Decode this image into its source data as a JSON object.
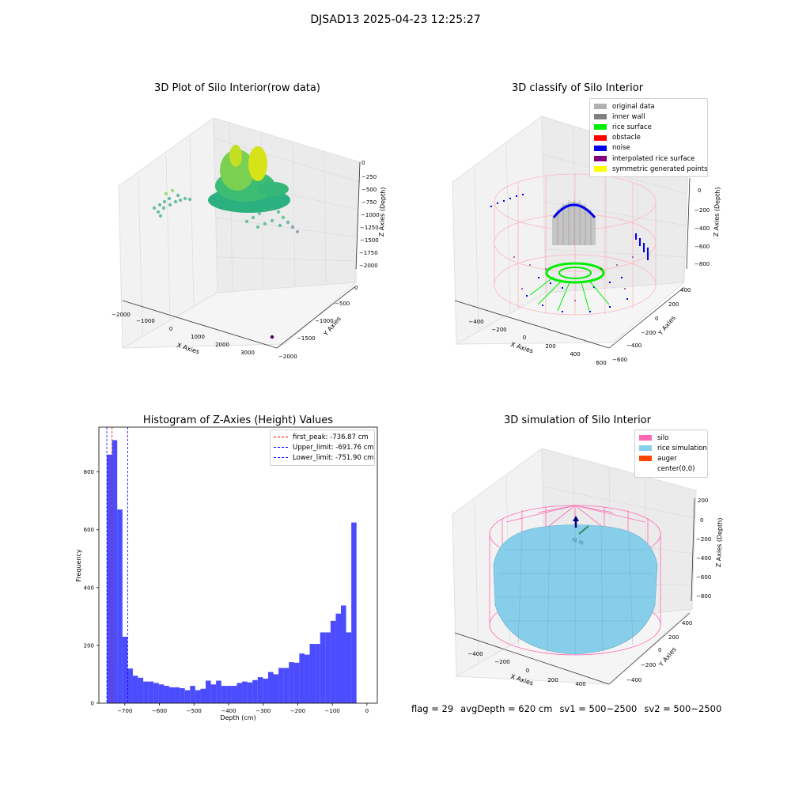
{
  "suptitle": "DJSAD13 2025-04-23 12:25:27",
  "footer": {
    "flag": "flag = 29",
    "avg_depth": "avgDepth = 620 cm",
    "sv1": "sv1 = 500~2500",
    "sv2": "sv2 = 500~2500"
  },
  "raw_plot": {
    "title": "3D Plot of Silo Interior(row data)",
    "x_label": "X Axies",
    "y_label": "Y Axies",
    "z_label": "Z Axies (Depth)",
    "x_ticks": [
      "−2000",
      "−1000",
      "0",
      "1000",
      "2000",
      "3000"
    ],
    "y_ticks": [
      "0",
      "−500",
      "−1000",
      "−1500",
      "−2000"
    ],
    "z_ticks": [
      "0",
      "−250",
      "−500",
      "−750",
      "−1000",
      "−1250",
      "−1500",
      "−1750",
      "−2000"
    ]
  },
  "classify_plot": {
    "title": "3D classify of Silo Interior",
    "x_label": "X Axies",
    "y_label": "Y Axies",
    "z_label": "Z Axies (Depth)",
    "x_ticks": [
      "−400",
      "−200",
      "0",
      "200",
      "400",
      "600"
    ],
    "y_ticks": [
      "400",
      "200",
      "0",
      "−200",
      "−400",
      "−600"
    ],
    "z_ticks": [
      "0",
      "−200",
      "−400",
      "−600",
      "−800"
    ],
    "legend": [
      {
        "label": "original data",
        "color": "#b0b0b0"
      },
      {
        "label": "inner wall",
        "color": "#808080"
      },
      {
        "label": "rice surface",
        "color": "#00ee00"
      },
      {
        "label": "obstacle",
        "color": "#ff0000"
      },
      {
        "label": "noise",
        "color": "#0000ee"
      },
      {
        "label": "interpolated rice surface",
        "color": "#800080"
      },
      {
        "label": "symmetric generated points",
        "color": "#ffff00"
      }
    ]
  },
  "sim_plot": {
    "title": "3D simulation of Silo Interior",
    "x_label": "X Axies",
    "y_label": "Y Axies",
    "z_label": "Z Axies (Depth)",
    "x_ticks": [
      "−400",
      "−200",
      "0",
      "200",
      "400"
    ],
    "y_ticks": [
      "400",
      "200",
      "0",
      "−200",
      "−400"
    ],
    "z_ticks": [
      "200",
      "0",
      "−200",
      "−400",
      "−600",
      "−800"
    ],
    "center_label": "(0, 0)",
    "legend": [
      {
        "label": "silo",
        "color": "#ff69b4"
      },
      {
        "label": "rice simulation",
        "color": "#87ceeb"
      },
      {
        "label": "auger",
        "color": "#ff4500"
      },
      {
        "label": "center(0,0)",
        "color": "#ffffff"
      }
    ]
  },
  "chart_data": {
    "type": "bar",
    "title": "Histogram of Z-Axies (Height) Values",
    "xlabel": "Depth (cm)",
    "ylabel": "Frequency",
    "xlim": [
      -775,
      30
    ],
    "ylim": [
      0,
      955
    ],
    "x_ticks": [
      -700,
      -600,
      -500,
      -400,
      -300,
      -200,
      -100,
      0
    ],
    "x_tick_labels": [
      "−700",
      "−600",
      "−500",
      "−400",
      "−300",
      "−200",
      "−100",
      "0"
    ],
    "y_ticks": [
      0,
      200,
      400,
      600,
      800
    ],
    "y_tick_labels": [
      "0",
      "200",
      "400",
      "600",
      "800"
    ],
    "bar_color": "#0000ff",
    "bins_start": -752,
    "bin_width": 15.04,
    "counts": [
      860,
      910,
      670,
      230,
      120,
      95,
      88,
      75,
      75,
      70,
      65,
      60,
      55,
      55,
      52,
      45,
      60,
      45,
      50,
      78,
      65,
      78,
      60,
      60,
      60,
      70,
      75,
      72,
      80,
      90,
      85,
      108,
      100,
      122,
      122,
      142,
      140,
      172,
      168,
      205,
      205,
      245,
      245,
      285,
      310,
      338,
      245,
      625
    ],
    "vlines": [
      {
        "label": "first_peak: -736.87 cm",
        "x": -736.87,
        "color": "#ff0000"
      },
      {
        "label": "Upper_limit: -691.76 cm",
        "x": -691.76,
        "color": "#0000ff"
      },
      {
        "label": "Lower_limit: -751.90 cm",
        "x": -751.9,
        "color": "#0000ff"
      }
    ],
    "legend_position": "top-right"
  }
}
